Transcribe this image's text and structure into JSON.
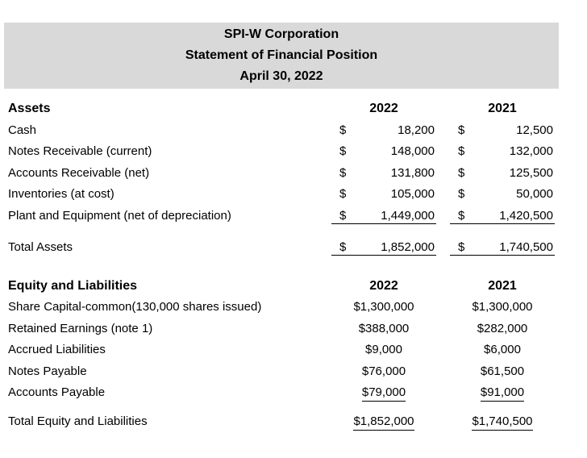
{
  "header": {
    "company": "SPI-W Corporation",
    "statement": "Statement of Financial Position",
    "date": "April 30, 2022"
  },
  "columns": {
    "col1": "2022",
    "col2": "2021"
  },
  "currency": "$",
  "assets": {
    "section_title": "Assets",
    "rows": [
      {
        "label": "Cash",
        "v2022": "18,200",
        "v2021": "12,500"
      },
      {
        "label": "Notes Receivable (current)",
        "v2022": "148,000",
        "v2021": "132,000"
      },
      {
        "label": "Accounts Receivable (net)",
        "v2022": "131,800",
        "v2021": "125,500"
      },
      {
        "label": "Inventories (at cost)",
        "v2022": "105,000",
        "v2021": "50,000"
      },
      {
        "label": "Plant and Equipment (net of depreciation)",
        "v2022": "1,449,000",
        "v2021": "1,420,500"
      }
    ],
    "total": {
      "label": "Total Assets",
      "v2022": "1,852,000",
      "v2021": "1,740,500"
    }
  },
  "equity": {
    "section_title": "Equity and Liabilities",
    "rows": [
      {
        "label": "Share Capital-common(130,000 shares issued)",
        "v2022": "$1,300,000",
        "v2021": "$1,300,000"
      },
      {
        "label": "Retained Earnings (note 1)",
        "v2022": "$388,000",
        "v2021": "$282,000"
      },
      {
        "label": "Accrued Liabilities",
        "v2022": "$9,000",
        "v2021": "$6,000"
      },
      {
        "label": "Notes Payable",
        "v2022": "$76,000",
        "v2021": "$61,500"
      },
      {
        "label": "Accounts Payable",
        "v2022": "$79,000",
        "v2021": "$91,000"
      }
    ],
    "total": {
      "label": "Total Equity and Liabilities",
      "v2022": "$1,852,000",
      "v2021": "$1,740,500"
    }
  },
  "colors": {
    "header_bg": "#d9d9d9",
    "text": "#000000"
  }
}
